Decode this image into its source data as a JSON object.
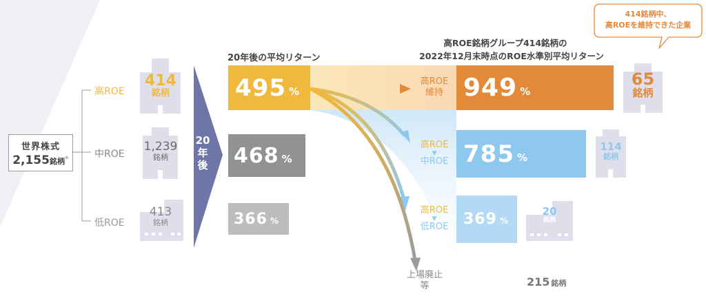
{
  "colors": {
    "orange": "#e2893a",
    "gold": "#f0b93e",
    "gray_dark": "#909294",
    "gray_light": "#bcbdbe",
    "blue": "#8ec8ef",
    "blue_light": "#b2daf4",
    "navy": "#6e75a8",
    "building": "#dedfeb",
    "text_dark": "#444444"
  },
  "universe": {
    "title": "世界株式",
    "count": "2,155",
    "unit": "銘柄",
    "note_mark": "※"
  },
  "groups": [
    {
      "label": "高ROE",
      "count": "414",
      "unit": "銘柄"
    },
    {
      "label": "中ROE",
      "count": "1,239",
      "unit": "銘柄"
    },
    {
      "label": "低ROE",
      "count": "413",
      "unit": "銘柄"
    }
  ],
  "period_arrow": {
    "line1": "20",
    "line2": "年",
    "line3": "後"
  },
  "returns_header": "20年後の平均リターン",
  "returns": [
    {
      "value": "495",
      "unit": "%"
    },
    {
      "value": "468",
      "unit": "%"
    },
    {
      "value": "366",
      "unit": "%"
    }
  ],
  "right_header": {
    "line1": "高ROE銘柄グループ414銘柄の",
    "line2": "2022年12月末時点のROE水準別平均リターン"
  },
  "callout": {
    "line1": "414銘柄中、",
    "line2": "高ROEを維持できた企業"
  },
  "outcomes": [
    {
      "label_top": "高ROE",
      "label_bottom": "維持",
      "value": "949",
      "unit": "%",
      "count": "65",
      "count_unit": "銘柄"
    },
    {
      "label_top": "高ROE",
      "label_bottom": "中ROE",
      "value": "785",
      "unit": "%",
      "count": "114",
      "count_unit": "銘柄"
    },
    {
      "label_top": "高ROE",
      "label_bottom": "低ROE",
      "value": "369",
      "unit": "%",
      "count": "20",
      "count_unit": "銘柄"
    }
  ],
  "delisted": {
    "label_line1": "上場廃止",
    "label_line2": "等",
    "count": "215",
    "count_unit": "銘柄"
  }
}
